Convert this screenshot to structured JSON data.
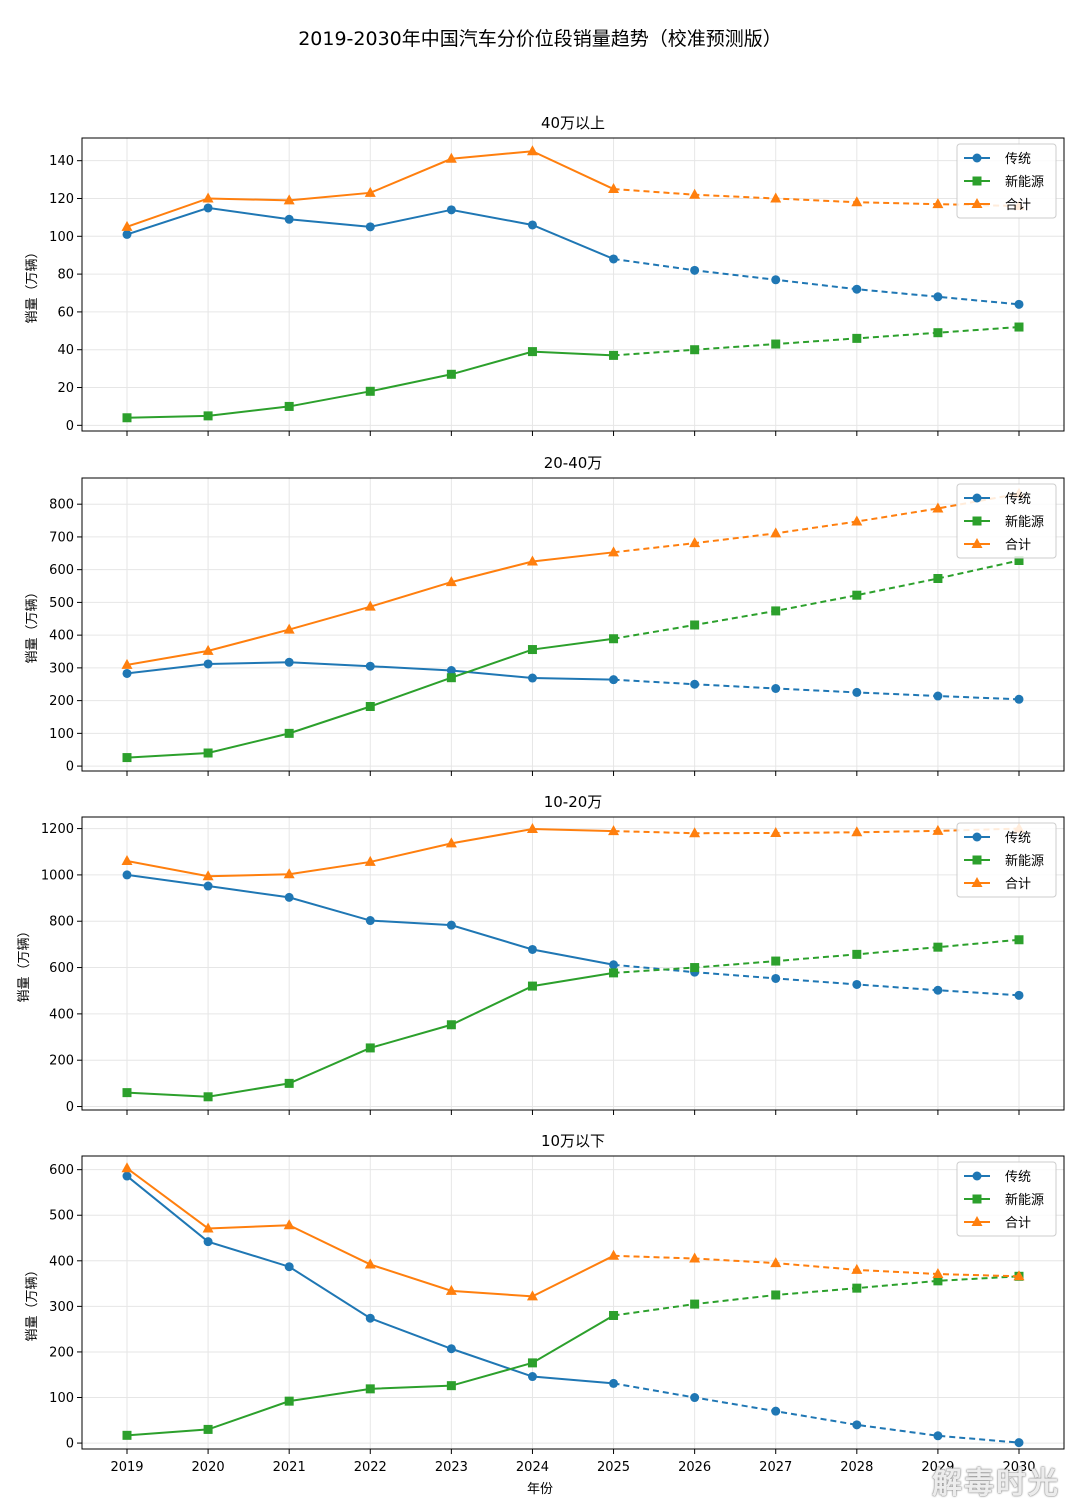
{
  "title": "2019-2030年中国汽车分价位段销量趋势（校准预测版）",
  "watermark": "解毒时光",
  "colors": {
    "traditional": "#1f77b4",
    "nev": "#2ca02c",
    "total": "#ff7f0e"
  },
  "chart_data": [
    {
      "type": "line",
      "title": "40万以上",
      "ylabel": "销量（万辆）",
      "xlabel": "",
      "ylim": [
        -3,
        152
      ],
      "yticks": [
        0,
        20,
        40,
        60,
        80,
        100,
        120,
        140
      ],
      "x": [
        2019,
        2020,
        2021,
        2022,
        2023,
        2024,
        2025,
        2026,
        2027,
        2028,
        2029,
        2030
      ],
      "forecast_from": 2025,
      "legend": "top-right",
      "series": [
        {
          "name": "传统",
          "marker": "circle",
          "values": [
            101,
            115,
            109,
            105,
            114,
            106,
            88,
            82,
            77,
            72,
            68,
            64
          ]
        },
        {
          "name": "新能源",
          "marker": "square",
          "values": [
            4,
            5,
            10,
            18,
            27,
            39,
            37,
            40,
            43,
            46,
            49,
            52
          ]
        },
        {
          "name": "合计",
          "marker": "triangle",
          "values": [
            105,
            120,
            119,
            123,
            141,
            145,
            125,
            122,
            120,
            118,
            117,
            116
          ]
        }
      ]
    },
    {
      "type": "line",
      "title": "20-40万",
      "ylabel": "销量（万辆）",
      "xlabel": "",
      "ylim": [
        -15,
        880
      ],
      "yticks": [
        0,
        100,
        200,
        300,
        400,
        500,
        600,
        700,
        800
      ],
      "x": [
        2019,
        2020,
        2021,
        2022,
        2023,
        2024,
        2025,
        2026,
        2027,
        2028,
        2029,
        2030
      ],
      "forecast_from": 2025,
      "legend": "top-right",
      "series": [
        {
          "name": "传统",
          "marker": "circle",
          "values": [
            283,
            312,
            317,
            305,
            292,
            269,
            264,
            250,
            237,
            225,
            214,
            204
          ]
        },
        {
          "name": "新能源",
          "marker": "square",
          "values": [
            26,
            40,
            100,
            182,
            270,
            356,
            389,
            431,
            474,
            522,
            573,
            628
          ]
        },
        {
          "name": "合计",
          "marker": "triangle",
          "values": [
            309,
            352,
            417,
            487,
            562,
            625,
            653,
            681,
            711,
            747,
            787,
            832
          ]
        }
      ]
    },
    {
      "type": "line",
      "title": "10-20万",
      "ylabel": "销量（万辆）",
      "xlabel": "",
      "ylim": [
        -15,
        1250
      ],
      "yticks": [
        0,
        200,
        400,
        600,
        800,
        1000,
        1200
      ],
      "x": [
        2019,
        2020,
        2021,
        2022,
        2023,
        2024,
        2025,
        2026,
        2027,
        2028,
        2029,
        2030
      ],
      "forecast_from": 2025,
      "legend": "top-right",
      "series": [
        {
          "name": "传统",
          "marker": "circle",
          "values": [
            1000,
            952,
            903,
            803,
            783,
            678,
            612,
            580,
            553,
            527,
            502,
            480
          ]
        },
        {
          "name": "新能源",
          "marker": "square",
          "values": [
            60,
            42,
            100,
            253,
            353,
            520,
            577,
            600,
            628,
            657,
            688,
            720
          ]
        },
        {
          "name": "合计",
          "marker": "triangle",
          "values": [
            1060,
            994,
            1003,
            1056,
            1136,
            1198,
            1189,
            1180,
            1181,
            1184,
            1190,
            1200
          ]
        }
      ]
    },
    {
      "type": "line",
      "title": "10万以下",
      "ylabel": "销量（万辆）",
      "xlabel": "年份",
      "ylim": [
        -13,
        630
      ],
      "yticks": [
        0,
        100,
        200,
        300,
        400,
        500,
        600
      ],
      "x": [
        2019,
        2020,
        2021,
        2022,
        2023,
        2024,
        2025,
        2026,
        2027,
        2028,
        2029,
        2030
      ],
      "forecast_from": 2025,
      "legend": "top-right",
      "series": [
        {
          "name": "传统",
          "marker": "circle",
          "values": [
            586,
            442,
            387,
            274,
            207,
            146,
            131,
            100,
            70,
            40,
            16,
            1
          ]
        },
        {
          "name": "新能源",
          "marker": "square",
          "values": [
            17,
            30,
            92,
            119,
            126,
            176,
            280,
            305,
            325,
            340,
            356,
            366
          ]
        },
        {
          "name": "合计",
          "marker": "triangle",
          "values": [
            603,
            471,
            478,
            392,
            334,
            322,
            411,
            405,
            395,
            380,
            371,
            366
          ]
        }
      ]
    }
  ]
}
